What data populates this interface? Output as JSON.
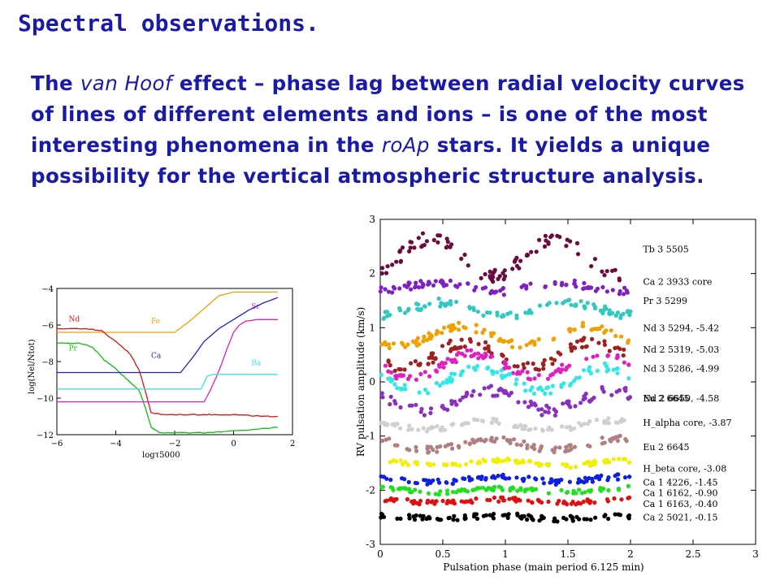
{
  "heading": "Spectral observations.",
  "paragraph": {
    "p1": "The ",
    "em1": "van Hoof",
    "p2": " effect – phase lag between radial velocity curves of lines of different elements and ions – is one of the most interesting phenomena in the ",
    "em2": "roAp",
    "p3": " stars. It yields a unique possibility for the vertical atmospheric structure analysis."
  },
  "chart_data": [
    {
      "type": "line",
      "xlabel": "logτ5000",
      "ylabel": "log(Nel/Ntot)",
      "xlim": [
        -6,
        2
      ],
      "ylim": [
        -12,
        -4
      ],
      "xticks": [
        -6,
        -4,
        -2,
        0,
        2
      ],
      "yticks": [
        -12,
        -10,
        -8,
        -6,
        -4
      ],
      "grid": false,
      "series": [
        {
          "name": "Fe",
          "color": "#f0a000",
          "label_at": [
            -2.8,
            -5.9
          ],
          "x": [
            -6,
            -2,
            -1.5,
            -1,
            -0.5,
            0,
            0.5,
            1,
            1.5
          ],
          "y": [
            -6.4,
            -6.4,
            -5.8,
            -5.1,
            -4.4,
            -4.2,
            -4.2,
            -4.2,
            -4.2
          ]
        },
        {
          "name": "Nd",
          "color": "#e01010",
          "label_at": [
            -5.6,
            -5.8
          ],
          "x": [
            -6,
            -5,
            -4.5,
            -4,
            -3.5,
            -3.2,
            -3.0,
            -2.8,
            -2.4,
            -1,
            0,
            1.0,
            1.5
          ],
          "y": [
            -6.2,
            -6.2,
            -6.3,
            -6.9,
            -7.6,
            -8.5,
            -9.6,
            -10.8,
            -10.9,
            -10.9,
            -10.9,
            -11.0,
            -11.0
          ],
          "jitter": 0.05
        },
        {
          "name": "Pr",
          "color": "#10c010",
          "label_at": [
            -5.6,
            -7.4
          ],
          "x": [
            -6,
            -5.2,
            -4.8,
            -4.4,
            -4,
            -3.6,
            -3.2,
            -3.0,
            -2.8,
            -2.5,
            -1,
            0,
            1.5
          ],
          "y": [
            -7.0,
            -7.0,
            -7.2,
            -7.9,
            -8.4,
            -9.0,
            -9.6,
            -10.5,
            -11.6,
            -11.9,
            -11.9,
            -11.8,
            -11.6
          ],
          "jitter": 0.05
        },
        {
          "name": "Sr",
          "color": "#e020c0",
          "label_at": [
            0.6,
            -5.1
          ],
          "x": [
            -6,
            -1,
            -0.8,
            -0.6,
            -0.4,
            -0.2,
            0,
            0.2,
            0.4,
            0.8,
            1.2,
            1.5
          ],
          "y": [
            -10.2,
            -10.2,
            -9.6,
            -8.9,
            -8.1,
            -7.2,
            -6.4,
            -6.0,
            -5.8,
            -5.7,
            -5.7,
            -5.7
          ]
        },
        {
          "name": "Ca",
          "color": "#2020d0",
          "label_at": [
            -2.8,
            -7.8
          ],
          "x": [
            -6,
            -1.8,
            -1.4,
            -1,
            -0.5,
            0,
            0.5,
            1.0,
            1.5
          ],
          "y": [
            -8.6,
            -8.6,
            -7.8,
            -6.9,
            -6.2,
            -5.7,
            -5.2,
            -4.8,
            -4.5
          ]
        },
        {
          "name": "Ba",
          "color": "#40e0e0",
          "label_at": [
            0.6,
            -8.2
          ],
          "x": [
            -6,
            -1.1,
            -0.9,
            -0.7,
            1.5
          ],
          "y": [
            -9.5,
            -9.5,
            -8.8,
            -8.7,
            -8.7
          ]
        }
      ]
    },
    {
      "type": "scatter",
      "xlabel": "Pulsation phase (main period 6.125 min)",
      "ylabel": "RV pulsation amplitude (km/s)",
      "xlim": [
        0,
        3
      ],
      "ylim": [
        -3,
        3
      ],
      "xticks": [
        0,
        0.5,
        1,
        1.5,
        2,
        2.5,
        3
      ],
      "yticks": [
        -3,
        -2,
        -1,
        0,
        1,
        2,
        3
      ],
      "x_range_data": [
        0,
        2
      ],
      "grid": false,
      "series": [
        {
          "name": "Tb 3 5505",
          "color": "#6a0a3e",
          "offset": 2.3,
          "amp": 0.35,
          "phase_shift": 0.15,
          "scatter": 0.12,
          "label_y": 2.45
        },
        {
          "name": "Ca 2 3933 core",
          "color": "#8020c0",
          "offset": 1.75,
          "amp": 0.08,
          "phase_shift": 0.2,
          "scatter": 0.07,
          "label_y": 1.85
        },
        {
          "name": "Pr 3 5299",
          "color": "#30c8c0",
          "offset": 1.35,
          "amp": 0.12,
          "phase_shift": 0.25,
          "scatter": 0.08,
          "label_y": 1.5
        },
        {
          "name": "Nd 3 5294, -5.42",
          "color": "#f0a000",
          "offset": 0.85,
          "amp": 0.18,
          "phase_shift": 0.4,
          "scatter": 0.07,
          "label_y": 1.0
        },
        {
          "name": "Nd 2 5319, -5.03",
          "color": "#a02020",
          "offset": 0.5,
          "amp": 0.25,
          "phase_shift": 0.45,
          "scatter": 0.1,
          "label_y": 0.6
        },
        {
          "name": "Nd 3 5286, -4.99",
          "color": "#e020c0",
          "offset": 0.3,
          "amp": 0.22,
          "phase_shift": 0.5,
          "scatter": 0.08,
          "label_y": 0.25
        },
        {
          "name": "Nd 2 6650, -4.58",
          "color": "#30e8e8",
          "offset": 0.05,
          "amp": 0.22,
          "phase_shift": 0.55,
          "scatter": 0.08,
          "label_y": -0.3
        },
        {
          "name": "Eu 2 6645",
          "color": "#8a30c0",
          "offset": -0.35,
          "amp": 0.18,
          "phase_shift": 0.6,
          "scatter": 0.1,
          "label_y": -0.3
        },
        {
          "name": "H_alpha core, -3.87",
          "color": "#d0d0d0",
          "offset": -0.8,
          "amp": 0.08,
          "phase_shift": 0.6,
          "scatter": 0.05,
          "label_y": -0.75
        },
        {
          "name": "Eu 2 6645",
          "color": "#b08080",
          "offset": -1.15,
          "amp": 0.1,
          "phase_shift": 0.65,
          "scatter": 0.06,
          "label_y": -1.2
        },
        {
          "name": "H_beta core, -3.08",
          "color": "#f0f000",
          "offset": -1.5,
          "amp": 0.05,
          "phase_shift": 0.7,
          "scatter": 0.04,
          "label_y": -1.6
        },
        {
          "name": "Ca 1 4226, -1.45",
          "color": "#1020e0",
          "offset": -1.8,
          "amp": 0.05,
          "phase_shift": 0.7,
          "scatter": 0.05,
          "label_y": -1.85
        },
        {
          "name": "Ca 1 6162, -0.90",
          "color": "#20e020",
          "offset": -2.0,
          "amp": 0.04,
          "phase_shift": 0.7,
          "scatter": 0.04,
          "label_y": -2.05
        },
        {
          "name": "Ca 1 6163, -0.40",
          "color": "#e01010",
          "offset": -2.2,
          "amp": 0.03,
          "phase_shift": 0.7,
          "scatter": 0.04,
          "label_y": -2.25
        },
        {
          "name": "Ca 2 5021, -0.15",
          "color": "#000000",
          "offset": -2.5,
          "amp": 0.03,
          "phase_shift": 0.7,
          "scatter": 0.05,
          "label_y": -2.5
        }
      ]
    }
  ]
}
